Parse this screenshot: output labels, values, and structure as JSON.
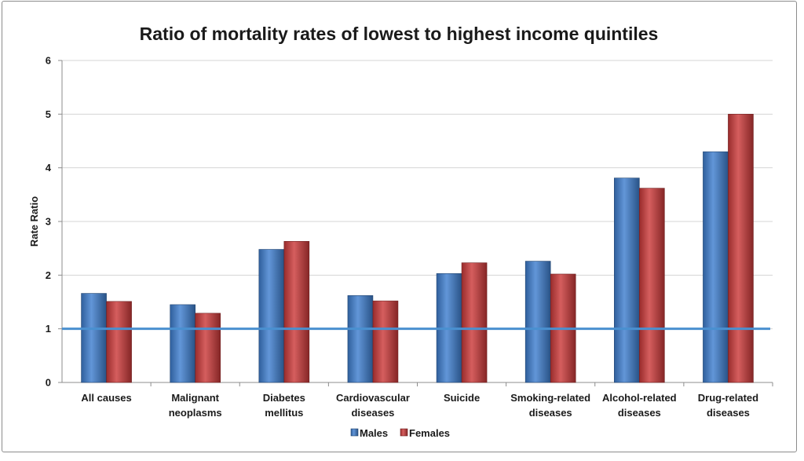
{
  "chart_data": {
    "type": "bar",
    "title": "Ratio of mortality rates of lowest to highest income quintiles",
    "xlabel": "",
    "ylabel": "Rate Ratio",
    "ylim": [
      0,
      6
    ],
    "yticks": [
      "0",
      "1",
      "2",
      "3",
      "4",
      "5",
      "6"
    ],
    "grid": true,
    "reference_line": 1,
    "legend_position": "bottom",
    "categories": [
      [
        "All causes"
      ],
      [
        "Malignant",
        "neoplasms"
      ],
      [
        "Diabetes",
        "mellitus"
      ],
      [
        "Cardiovascular",
        "diseases"
      ],
      [
        "Suicide"
      ],
      [
        "Smoking-related",
        "diseases"
      ],
      [
        "Alcohol-related",
        "diseases"
      ],
      [
        "Drug-related",
        "diseases"
      ]
    ],
    "series": [
      {
        "name": "Males",
        "color": "#3f7fd0",
        "values": [
          1.66,
          1.45,
          2.48,
          1.62,
          2.03,
          2.26,
          3.81,
          4.3
        ]
      },
      {
        "name": "Females",
        "color": "#cc3b3b",
        "values": [
          1.51,
          1.29,
          2.63,
          1.52,
          2.23,
          2.02,
          3.62,
          5.0
        ]
      }
    ],
    "reference_line_color": "#4a90d0"
  }
}
